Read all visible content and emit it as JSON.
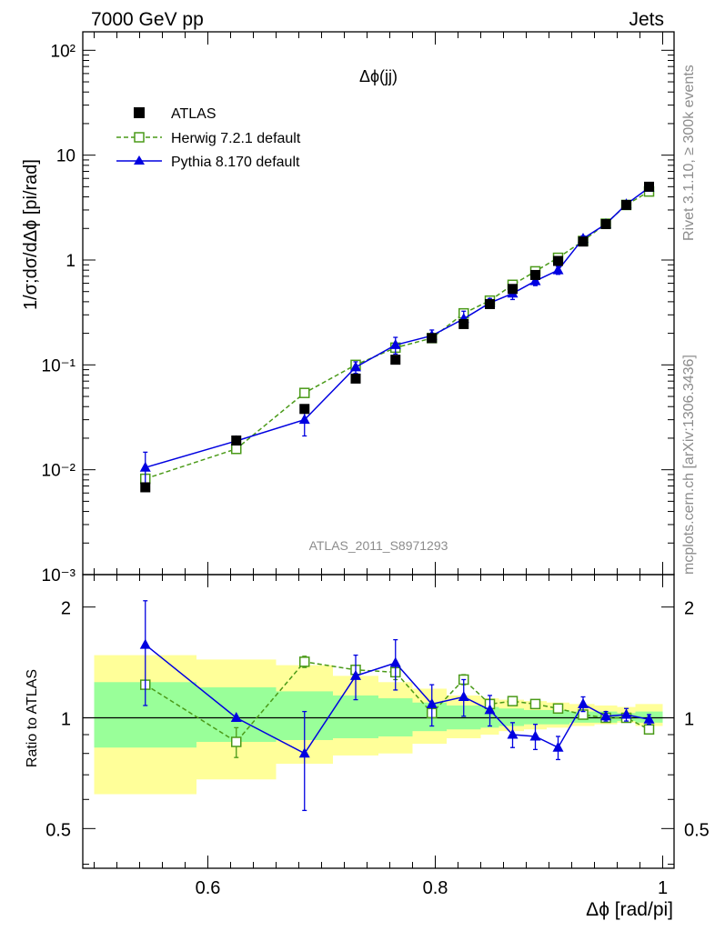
{
  "header": {
    "left": "7000 GeV pp",
    "right": "Jets"
  },
  "side_text": {
    "top": "Rivet 3.1.10, ≥ 300k events",
    "bottom": "mcplots.cern.ch [arXiv:1306.3436]"
  },
  "watermark": "ATLAS_2011_S8971293",
  "chart_data": [
    {
      "panel": "main",
      "type": "scatter",
      "title": "Δϕ(jj)",
      "ylabel": "1/σ;dσ/dΔϕ [pi/rad]",
      "y_scale": "log",
      "xlim": [
        0.49,
        1.01
      ],
      "ylim": [
        0.001,
        150
      ],
      "y_ticks": [
        {
          "value": 0.001,
          "label": "10⁻³"
        },
        {
          "value": 0.01,
          "label": "10⁻²"
        },
        {
          "value": 0.1,
          "label": "10⁻¹"
        },
        {
          "value": 1,
          "label": "1"
        },
        {
          "value": 10,
          "label": "10"
        },
        {
          "value": 100,
          "label": "10²"
        }
      ],
      "legend_position": "top-left",
      "series": [
        {
          "name": "ATLAS",
          "style": "markers",
          "color": "#000000",
          "x": [
            0.545,
            0.625,
            0.685,
            0.73,
            0.765,
            0.797,
            0.825,
            0.848,
            0.868,
            0.888,
            0.908,
            0.93,
            0.95,
            0.968,
            0.988
          ],
          "y": [
            0.0068,
            0.019,
            0.038,
            0.074,
            0.112,
            0.18,
            0.245,
            0.38,
            0.53,
            0.72,
            0.98,
            1.5,
            2.2,
            3.35,
            5.0
          ]
        },
        {
          "name": "Herwig 7.2.1 default",
          "style": "dashed-open-square",
          "color": "#4a9a18",
          "x": [
            0.545,
            0.625,
            0.685,
            0.73,
            0.765,
            0.797,
            0.825,
            0.848,
            0.868,
            0.888,
            0.908,
            0.93,
            0.95,
            0.968,
            0.988
          ],
          "y": [
            0.0082,
            0.0158,
            0.054,
            0.1,
            0.146,
            0.18,
            0.31,
            0.41,
            0.58,
            0.78,
            1.05,
            1.52,
            2.22,
            3.35,
            4.5
          ]
        },
        {
          "name": "Pythia 8.170 default",
          "style": "solid-filled-triangle",
          "color": "#0000e0",
          "x": [
            0.545,
            0.625,
            0.685,
            0.73,
            0.765,
            0.797,
            0.825,
            0.848,
            0.868,
            0.888,
            0.908,
            0.93,
            0.95,
            0.968,
            0.988
          ],
          "y": [
            0.0105,
            0.0188,
            0.03,
            0.095,
            0.155,
            0.19,
            0.275,
            0.39,
            0.48,
            0.63,
            0.8,
            1.6,
            2.2,
            3.4,
            4.9
          ],
          "yerr": [
            0.0042,
            0.001,
            0.009,
            0.012,
            0.028,
            0.025,
            0.05,
            0.04,
            0.06,
            0.06,
            0.07,
            0.1,
            0.1,
            0.15,
            0.15
          ]
        }
      ]
    },
    {
      "panel": "ratio",
      "type": "scatter",
      "xlabel": "Δϕ [rad/pi]",
      "ylabel": "Ratio to ATLAS",
      "y_scale": "log",
      "xlim": [
        0.49,
        1.01
      ],
      "ylim": [
        0.39,
        2.45
      ],
      "x_ticks": [
        0.6,
        0.8,
        1.0
      ],
      "x_tick_labels": [
        "0.6",
        "0.8",
        "1"
      ],
      "y_ticks": [
        0.5,
        1,
        2
      ],
      "y_tick_labels": [
        "0.5",
        "1",
        "2"
      ],
      "reference_line": 1,
      "bands": {
        "edges": [
          0.5,
          0.59,
          0.66,
          0.71,
          0.75,
          0.78,
          0.81,
          0.84,
          0.856,
          0.878,
          0.898,
          0.918,
          0.94,
          0.96,
          0.976,
          1.0
        ],
        "yellow_lo": [
          0.62,
          0.68,
          0.75,
          0.79,
          0.8,
          0.85,
          0.88,
          0.9,
          0.92,
          0.93,
          0.94,
          0.95,
          0.96,
          0.97,
          0.95
        ],
        "yellow_hi": [
          1.48,
          1.44,
          1.39,
          1.3,
          1.25,
          1.2,
          1.15,
          1.13,
          1.12,
          1.11,
          1.1,
          1.09,
          1.08,
          1.07,
          1.09
        ],
        "green_lo": [
          0.83,
          0.86,
          0.87,
          0.88,
          0.89,
          0.92,
          0.93,
          0.94,
          0.95,
          0.96,
          0.96,
          0.97,
          0.97,
          0.98,
          0.97
        ],
        "green_hi": [
          1.25,
          1.21,
          1.18,
          1.15,
          1.13,
          1.1,
          1.08,
          1.07,
          1.06,
          1.05,
          1.05,
          1.04,
          1.04,
          1.03,
          1.04
        ],
        "colors": {
          "outer": "#ffff99",
          "inner": "#99ff99"
        }
      },
      "series": [
        {
          "name": "Herwig 7.2.1 default",
          "style": "dashed-open-square",
          "color": "#4a9a18",
          "x": [
            0.545,
            0.625,
            0.685,
            0.73,
            0.765,
            0.797,
            0.825,
            0.848,
            0.868,
            0.888,
            0.908,
            0.93,
            0.95,
            0.968,
            0.988
          ],
          "y": [
            1.23,
            0.86,
            1.42,
            1.35,
            1.33,
            1.03,
            1.27,
            1.09,
            1.11,
            1.09,
            1.06,
            1.02,
            1.0,
            1.0,
            0.93
          ],
          "yerr": [
            0.02,
            0.08,
            0.05,
            0.03,
            0.06,
            0.03,
            0.04,
            0.02,
            0.02,
            0.02,
            0.02,
            0.01,
            0.01,
            0.01,
            0.01
          ]
        },
        {
          "name": "Pythia 8.170 default",
          "style": "solid-filled-triangle",
          "color": "#0000e0",
          "x": [
            0.545,
            0.625,
            0.685,
            0.73,
            0.765,
            0.797,
            0.825,
            0.848,
            0.868,
            0.888,
            0.908,
            0.93,
            0.95,
            0.968,
            0.988
          ],
          "y": [
            1.58,
            1.0,
            0.8,
            1.3,
            1.41,
            1.09,
            1.14,
            1.05,
            0.9,
            0.89,
            0.83,
            1.09,
            1.01,
            1.02,
            0.99
          ],
          "yerr": [
            0.5,
            0.0,
            0.24,
            0.18,
            0.22,
            0.14,
            0.13,
            0.1,
            0.07,
            0.07,
            0.06,
            0.05,
            0.03,
            0.04,
            0.03
          ]
        }
      ]
    }
  ]
}
